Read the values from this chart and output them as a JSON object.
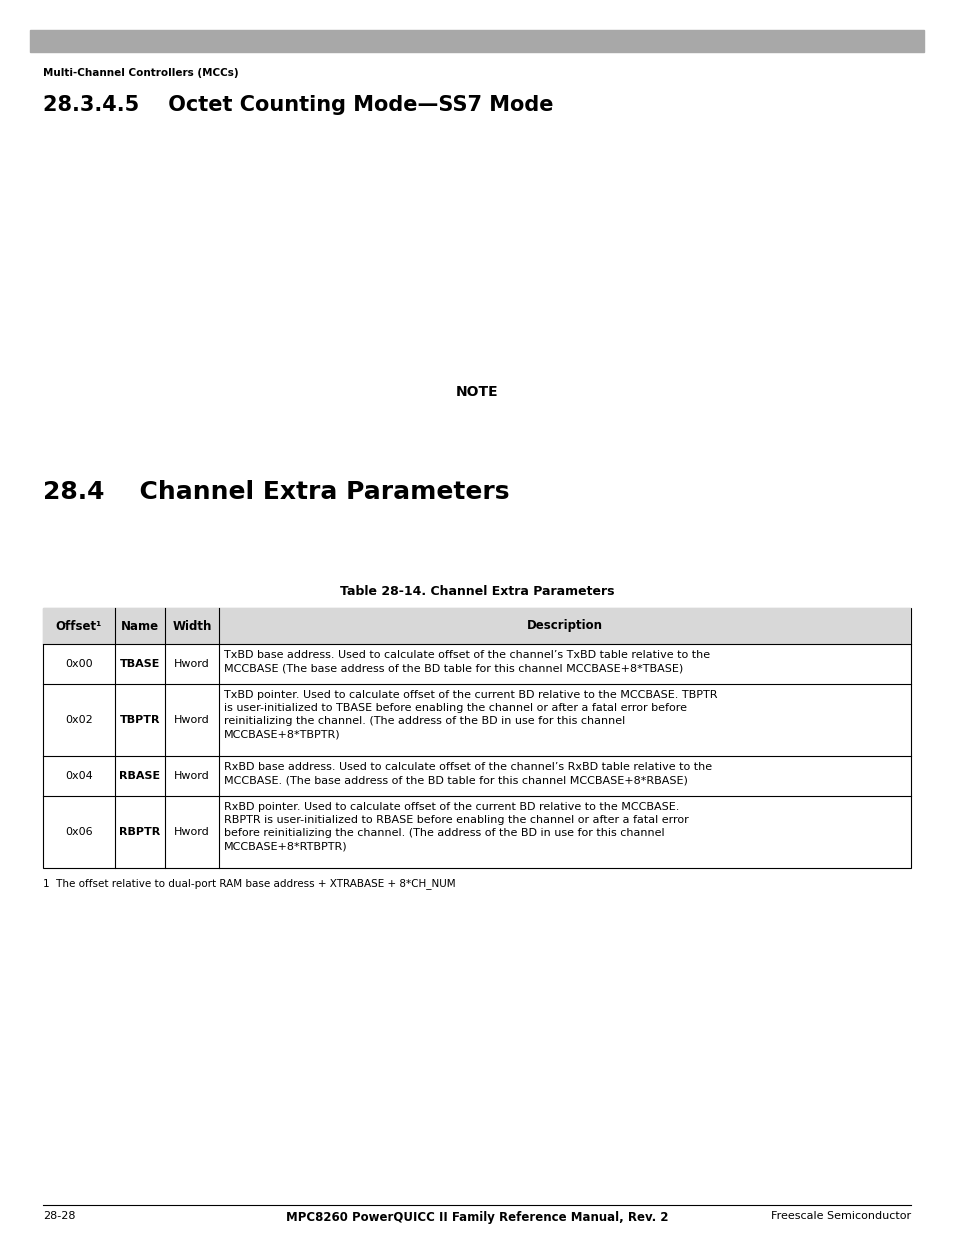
{
  "bg_color": "#ffffff",
  "header_bar_color": "#a8a8a8",
  "header_label": "Multi-Channel Controllers (MCCs)",
  "section_title": "28.3.4.5    Octet Counting Mode—SS7 Mode",
  "note_text": "NOTE",
  "section2_title": "28.4    Channel Extra Parameters",
  "table_title": "Table 28-14. Channel Extra Parameters",
  "table_rows": [
    {
      "offset": "0x00",
      "name": "TBASE",
      "width": "Hword",
      "desc_lines": [
        "TxBD base address. Used to calculate offset of the channel’s TxBD table relative to the",
        "MCCBASE (The base address of the BD table for this channel MCCBASE+8*TBASE)"
      ]
    },
    {
      "offset": "0x02",
      "name": "TBPTR",
      "width": "Hword",
      "desc_lines": [
        "TxBD pointer. Used to calculate offset of the current BD relative to the MCCBASE. TBPTR",
        "is user-initialized to TBASE before enabling the channel or after a fatal error before",
        "reinitializing the channel. (The address of the BD in use for this channel",
        "MCCBASE+8*TBPTR)"
      ]
    },
    {
      "offset": "0x04",
      "name": "RBASE",
      "width": "Hword",
      "desc_lines": [
        "RxBD base address. Used to calculate offset of the channel’s RxBD table relative to the",
        "MCCBASE. (The base address of the BD table for this channel MCCBASE+8*RBASE)"
      ]
    },
    {
      "offset": "0x06",
      "name": "RBPTR",
      "width": "Hword",
      "desc_lines": [
        "RxBD pointer. Used to calculate offset of the current BD relative to the MCCBASE.",
        "RBPTR is user-initialized to RBASE before enabling the channel or after a fatal error",
        "before reinitializing the channel. (The address of the BD in use for this channel",
        "MCCBASE+8*RTBPTR)"
      ]
    }
  ],
  "footnote": "1  The offset relative to dual-port RAM base address + XTRABASE + 8*CH_NUM",
  "footer_center_text": "MPC8260 PowerQUICC II Family Reference Manual, Rev. 2",
  "footer_left_text": "28-28",
  "footer_right_text": "Freescale Semiconductor"
}
